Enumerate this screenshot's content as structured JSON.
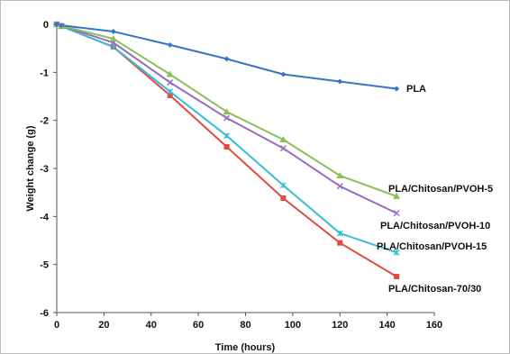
{
  "chart_data": {
    "type": "line",
    "xlabel": "Time (hours)",
    "ylabel": "Weight change (g)",
    "xlim": [
      0,
      160
    ],
    "ylim": [
      -6,
      0
    ],
    "xticks": [
      0,
      20,
      40,
      60,
      80,
      100,
      120,
      140,
      160
    ],
    "yticks": [
      0,
      -1,
      -2,
      -3,
      -4,
      -5,
      -6
    ],
    "grid": false,
    "legend": "direct labels",
    "x": [
      0,
      2,
      24,
      48,
      72,
      96,
      120,
      144
    ],
    "series": [
      {
        "name": "PLA",
        "color": "#3a72c4",
        "marker": "diamond",
        "values": [
          0,
          -0.02,
          -0.15,
          -0.43,
          -0.72,
          -1.04,
          -1.19,
          -1.34
        ]
      },
      {
        "name": "PLA/Chitosan/PVOH-5",
        "color": "#86c15a",
        "marker": "triangle",
        "values": [
          0,
          -0.03,
          -0.3,
          -1.04,
          -1.82,
          -2.4,
          -3.15,
          -3.58
        ]
      },
      {
        "name": "PLA/Chitosan/PVOH-10",
        "color": "#9a6ac0",
        "marker": "x",
        "values": [
          0,
          -0.03,
          -0.38,
          -1.21,
          -1.95,
          -2.58,
          -3.37,
          -3.93
        ]
      },
      {
        "name": "PLA/Chitosan/PVOH-15",
        "color": "#38bcd4",
        "marker": "star",
        "values": [
          0,
          -0.04,
          -0.47,
          -1.4,
          -2.32,
          -3.35,
          -4.35,
          -4.75
        ]
      },
      {
        "name": "PLA/Chitosan-70/30",
        "color": "#e04a3f",
        "marker": "square",
        "values": [
          0,
          -0.04,
          -0.47,
          -1.48,
          -2.55,
          -3.62,
          -4.55,
          -5.25
        ]
      }
    ]
  }
}
